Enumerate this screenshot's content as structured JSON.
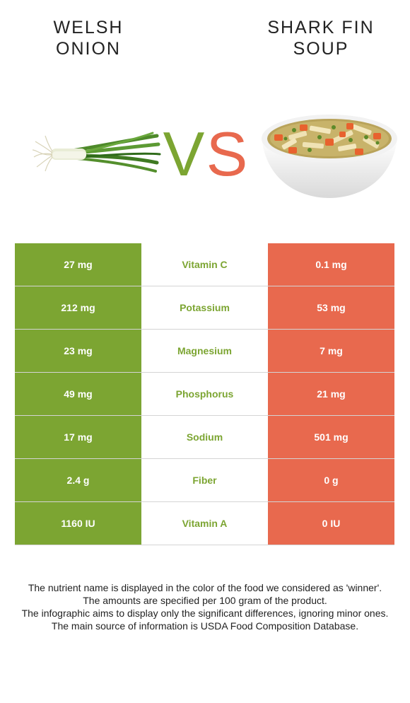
{
  "header": {
    "left_title_line1": "WELSH",
    "left_title_line2": "ONION",
    "right_title_line1": "SHARK FIN",
    "right_title_line2": "SOUP",
    "vs_left": "V",
    "vs_right": "S"
  },
  "images": {
    "left_icon": "welsh-onion-image",
    "right_icon": "shark-fin-soup-bowl-image"
  },
  "colors": {
    "left_food": "#7ca532",
    "right_food": "#e8694e"
  },
  "rows": [
    {
      "left": "27 mg",
      "nutrient": "Vitamin C",
      "right": "0.1 mg"
    },
    {
      "left": "212 mg",
      "nutrient": "Potassium",
      "right": "53 mg"
    },
    {
      "left": "23 mg",
      "nutrient": "Magnesium",
      "right": "7 mg"
    },
    {
      "left": "49 mg",
      "nutrient": "Phosphorus",
      "right": "21 mg"
    },
    {
      "left": "17 mg",
      "nutrient": "Sodium",
      "right": "501 mg"
    },
    {
      "left": "2.4 g",
      "nutrient": "Fiber",
      "right": "0 g"
    },
    {
      "left": "1160 IU",
      "nutrient": "Vitamin A",
      "right": "0 IU"
    }
  ],
  "footer": {
    "line1": "The nutrient name is displayed in the color of the food we considered as 'winner'.",
    "line2": "The amounts are specified per 100 gram of the product.",
    "line3": "The infographic aims to display only the significant differences, ignoring minor ones.",
    "line4": "The main source of information is USDA Food Composition Database."
  }
}
